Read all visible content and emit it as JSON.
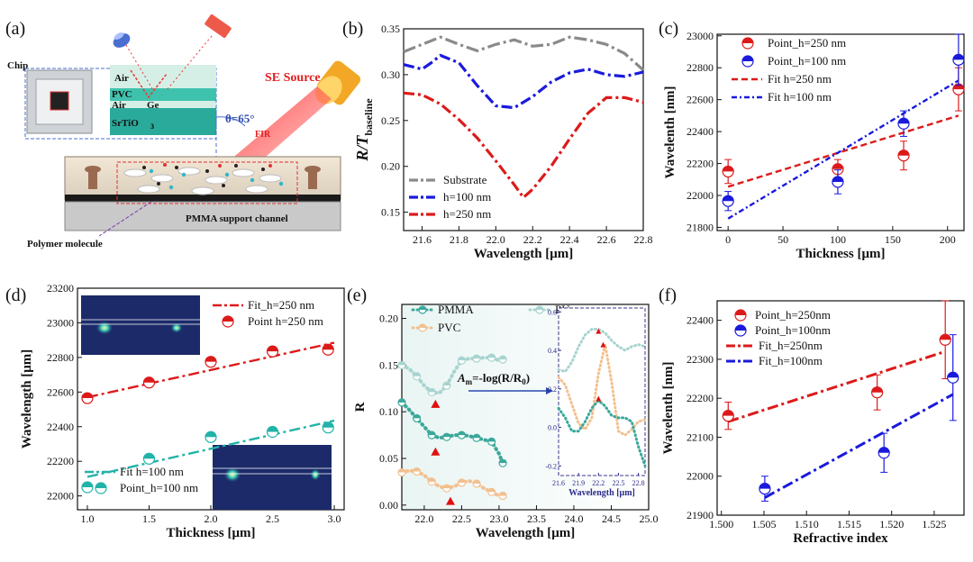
{
  "panels": {
    "a": {
      "label": "(a)",
      "chip": "Chip",
      "layers": [
        "Air",
        "PVC",
        "Air",
        "Ge",
        "SrTiO",
        "3"
      ],
      "source": "SE Source",
      "angle": "θ=65°",
      "fir": "FIR",
      "polymer": "Polymer molecule",
      "channel": "PMMA support channel"
    },
    "b": {
      "label": "(b)"
    },
    "c": {
      "label": "(c)"
    },
    "d": {
      "label": "(d)"
    },
    "e": {
      "label": "(e)",
      "equation": "A",
      "eq_sub": "m",
      "eq_rest": "=-log(R/R",
      "eq_sub2": "0",
      "eq_end": ")"
    },
    "f": {
      "label": "(f)"
    }
  },
  "chart_data": [
    {
      "id": "b",
      "type": "line",
      "xlabel": "Wavelength [μm]",
      "ylabel": "R/T",
      "ylabel_sub": "baseline",
      "xlim": [
        21.5,
        22.8
      ],
      "ylim": [
        0.13,
        0.35
      ],
      "xticks": [
        21.6,
        21.8,
        22.0,
        22.2,
        22.4,
        22.6,
        22.8
      ],
      "yticks": [
        0.15,
        0.2,
        0.25,
        0.3,
        0.35
      ],
      "series": [
        {
          "name": "Substrate",
          "color": "#8a8a8a",
          "x": [
            21.5,
            21.6,
            21.7,
            21.8,
            21.9,
            22.0,
            22.1,
            22.2,
            22.3,
            22.4,
            22.5,
            22.6,
            22.7,
            22.8
          ],
          "y": [
            0.325,
            0.333,
            0.341,
            0.333,
            0.326,
            0.333,
            0.338,
            0.331,
            0.333,
            0.341,
            0.338,
            0.333,
            0.323,
            0.305
          ]
        },
        {
          "name": "h=100 nm",
          "color": "#1a1add",
          "x": [
            21.5,
            21.6,
            21.65,
            21.7,
            21.8,
            21.9,
            22.0,
            22.1,
            22.2,
            22.3,
            22.4,
            22.5,
            22.6,
            22.7,
            22.8
          ],
          "y": [
            0.311,
            0.306,
            0.313,
            0.321,
            0.313,
            0.288,
            0.266,
            0.264,
            0.276,
            0.292,
            0.302,
            0.306,
            0.3,
            0.298,
            0.303
          ]
        },
        {
          "name": "h=250 nm",
          "color": "#dd1a1a",
          "x": [
            21.5,
            21.6,
            21.7,
            21.8,
            21.9,
            22.0,
            22.1,
            22.15,
            22.2,
            22.3,
            22.4,
            22.5,
            22.6,
            22.7,
            22.8
          ],
          "y": [
            0.28,
            0.278,
            0.268,
            0.251,
            0.231,
            0.206,
            0.18,
            0.166,
            0.175,
            0.2,
            0.23,
            0.258,
            0.275,
            0.275,
            0.27
          ]
        }
      ]
    },
    {
      "id": "c",
      "type": "scatter",
      "xlabel": "Thickness [μm]",
      "ylabel": "Wavelenth [nm]",
      "xlim": [
        -10,
        215
      ],
      "ylim": [
        21780,
        23010
      ],
      "xticks": [
        0,
        50,
        100,
        150,
        200
      ],
      "yticks": [
        21800,
        22000,
        22200,
        22400,
        22600,
        22800,
        23000
      ],
      "series": [
        {
          "name": "Point_h=250 nm",
          "color": "#dd1a1a",
          "x": [
            0,
            100,
            160,
            210
          ],
          "y": [
            22150,
            22165,
            22250,
            22665
          ],
          "err": [
            75,
            60,
            90,
            135
          ]
        },
        {
          "name": "Point_h=100 nm",
          "color": "#1a1add",
          "x": [
            0,
            100,
            160,
            210
          ],
          "y": [
            21965,
            22085,
            22450,
            22850
          ],
          "err": [
            60,
            75,
            80,
            160
          ]
        }
      ],
      "fits": [
        {
          "name": "Fit  h=250 nm",
          "color": "#dd1a1a",
          "x": [
            0,
            210
          ],
          "y": [
            22055,
            22500
          ]
        },
        {
          "name": "Fit  h=100 nm",
          "color": "#1a1add",
          "x": [
            0,
            210
          ],
          "y": [
            21855,
            22720
          ]
        }
      ]
    },
    {
      "id": "d",
      "type": "scatter",
      "xlabel": "Thickness [μm]",
      "ylabel": "Wavelength [μm]",
      "xlim": [
        0.92,
        3.08
      ],
      "ylim": [
        21920,
        23200
      ],
      "xticks": [
        1.0,
        1.5,
        2.0,
        2.5,
        3.0
      ],
      "yticks": [
        22000,
        22200,
        22400,
        22600,
        22800,
        23000,
        23200
      ],
      "series": [
        {
          "name": "Point  h=250 nm",
          "color": "#dd1a1a",
          "x": [
            1.0,
            1.5,
            2.0,
            2.5,
            2.95
          ],
          "y": [
            22565,
            22655,
            22775,
            22835,
            22845
          ]
        },
        {
          "name": "Point_h=100 nm",
          "color": "#22b3a8",
          "x": [
            1.0,
            1.5,
            2.0,
            2.5,
            2.95
          ],
          "y": [
            22050,
            22215,
            22340,
            22370,
            22395
          ]
        }
      ],
      "fits": [
        {
          "name": "Fit_h=250 nm",
          "color": "#dd1a1a",
          "x": [
            1.0,
            3.0
          ],
          "y": [
            22570,
            22885
          ]
        },
        {
          "name": "Fit  h=100 nm",
          "color": "#22b3a8",
          "x": [
            1.0,
            3.0
          ],
          "y": [
            22110,
            22435
          ]
        }
      ]
    },
    {
      "id": "e",
      "type": "line",
      "xlabel": "Wavelength [μm]",
      "ylabel": "R",
      "xlim": [
        21.7,
        25.0
      ],
      "ylim": [
        -0.005,
        0.215
      ],
      "xticks": [
        22.0,
        22.5,
        23.0,
        23.5,
        24.0,
        24.5,
        25.0
      ],
      "yticks": [
        0.0,
        0.05,
        0.1,
        0.15,
        0.2
      ],
      "series": [
        {
          "name": "PMMA",
          "color": "#3aa89a",
          "x": [
            21.7,
            21.8,
            21.9,
            22.0,
            22.1,
            22.2,
            22.3,
            22.4,
            22.5,
            22.6,
            22.7,
            22.8,
            22.9,
            23.0,
            23.05
          ],
          "y": [
            0.11,
            0.102,
            0.093,
            0.084,
            0.075,
            0.072,
            0.073,
            0.075,
            0.075,
            0.074,
            0.072,
            0.07,
            0.068,
            0.055,
            0.045
          ]
        },
        {
          "name": "PU",
          "color": "#a8d4cf",
          "x": [
            21.7,
            21.8,
            21.9,
            22.0,
            22.1,
            22.2,
            22.3,
            22.4,
            22.5,
            22.6,
            22.7,
            22.8,
            22.9,
            23.0,
            23.05
          ],
          "y": [
            0.15,
            0.146,
            0.138,
            0.128,
            0.121,
            0.12,
            0.128,
            0.143,
            0.155,
            0.157,
            0.157,
            0.158,
            0.158,
            0.155,
            0.156
          ]
        },
        {
          "name": "PVC",
          "color": "#f2c08f",
          "x": [
            21.7,
            21.8,
            21.9,
            22.0,
            22.1,
            22.2,
            22.3,
            22.4,
            22.5,
            22.6,
            22.7,
            22.8,
            22.9,
            23.0,
            23.05
          ],
          "y": [
            0.035,
            0.037,
            0.036,
            0.032,
            0.025,
            0.02,
            0.018,
            0.02,
            0.024,
            0.026,
            0.023,
            0.018,
            0.014,
            0.01,
            0.01
          ]
        }
      ],
      "inset": {
        "xlabel": "Wavelength [μm]",
        "xlim": [
          21.6,
          22.9
        ],
        "ylim": [
          -0.25,
          0.62
        ],
        "xticks": [
          21.6,
          21.9,
          22.2,
          22.5,
          22.8
        ],
        "yticks": [
          -0.2,
          0.0,
          0.2,
          0.4,
          0.6
        ],
        "series": [
          {
            "name": "PU",
            "color": "#a8d4cf",
            "x": [
              21.6,
              21.7,
              21.8,
              21.9,
              22.0,
              22.1,
              22.2,
              22.3,
              22.4,
              22.5,
              22.6,
              22.7,
              22.8,
              22.9
            ],
            "y": [
              0.3,
              0.29,
              0.34,
              0.42,
              0.48,
              0.51,
              0.51,
              0.49,
              0.45,
              0.42,
              0.4,
              0.42,
              0.43,
              0.42
            ]
          },
          {
            "name": "PVC",
            "color": "#f2c08f",
            "x": [
              21.6,
              21.7,
              21.8,
              21.9,
              22.0,
              22.1,
              22.2,
              22.3,
              22.4,
              22.5,
              22.6,
              22.7,
              22.8,
              22.9
            ],
            "y": [
              0.26,
              0.22,
              0.12,
              0.02,
              -0.01,
              0.05,
              0.28,
              0.43,
              0.23,
              -0.02,
              -0.04,
              -0.01,
              0.03,
              0.04
            ]
          },
          {
            "name": "PMMA",
            "color": "#3aa89a",
            "x": [
              21.6,
              21.7,
              21.8,
              21.9,
              22.0,
              22.1,
              22.2,
              22.3,
              22.4,
              22.5,
              22.6,
              22.7,
              22.8,
              22.9
            ],
            "y": [
              0.1,
              0.05,
              -0.02,
              -0.02,
              0.03,
              0.1,
              0.14,
              0.11,
              0.06,
              0.05,
              0.05,
              0.03,
              -0.1,
              -0.2
            ]
          }
        ]
      }
    },
    {
      "id": "f",
      "type": "scatter",
      "xlabel": "Refractive index",
      "ylabel": "Wavelenth [nm]",
      "xlim": [
        1.4995,
        1.5285
      ],
      "ylim": [
        21900,
        22450
      ],
      "xticks": [
        1.5,
        1.505,
        1.51,
        1.515,
        1.52,
        1.525
      ],
      "xticklabels": [
        "1.500",
        "1.505",
        "1.510",
        "1.515",
        "1.520",
        "1.525"
      ],
      "yticks": [
        21900,
        22000,
        22100,
        22200,
        22300,
        22400
      ],
      "series": [
        {
          "name": "Point_h=250nm",
          "color": "#dd1a1a",
          "x": [
            1.5008,
            1.5183,
            1.5263
          ],
          "y": [
            22155,
            22215,
            22350
          ],
          "err": [
            35,
            45,
            100
          ]
        },
        {
          "name": "Point_h=100nm",
          "color": "#1a1add",
          "x": [
            1.5051,
            1.5191,
            1.5272
          ],
          "y": [
            21968,
            22060,
            22253
          ],
          "err": [
            32,
            50,
            110
          ]
        }
      ],
      "fits": [
        {
          "name": "Fit_h=250nm",
          "color": "#dd1a1a",
          "x": [
            1.5008,
            1.5263
          ],
          "y": [
            22140,
            22320
          ]
        },
        {
          "name": "Fit_h=100nm",
          "color": "#1a1add",
          "x": [
            1.5051,
            1.5272
          ],
          "y": [
            21945,
            22210
          ]
        }
      ]
    }
  ]
}
